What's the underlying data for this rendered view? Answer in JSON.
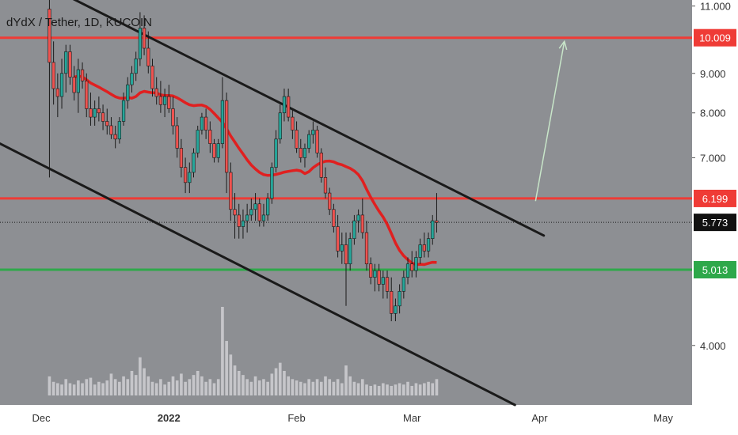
{
  "chart_data": {
    "type": "candlestick",
    "title": "dYdX / Tether, 1D, KUCOIN",
    "colors": {
      "background": "#8d8f93",
      "axis_panel": "#ffffff",
      "up": "#26a69a",
      "down": "#ef5350",
      "ma_line": "#e02020",
      "trendline": "#1a1a1a",
      "resistance": "#ef3b36",
      "support": "#2ea84a",
      "projection": "#c8e6c9",
      "volume": "#d0d0d3"
    },
    "y_axis": {
      "scale": "log",
      "range": [
        3.35,
        11.2
      ],
      "ticks": [
        {
          "value": 11.0,
          "label": "11.000"
        },
        {
          "value": 9.0,
          "label": "9.000"
        },
        {
          "value": 8.0,
          "label": "8.000"
        },
        {
          "value": 7.0,
          "label": "7.000"
        },
        {
          "value": 4.0,
          "label": "4.000"
        }
      ]
    },
    "x_axis": {
      "range": [
        "2021-11-21",
        "2022-05-08"
      ],
      "ticks": [
        {
          "date": "2021-12-01",
          "label": "Dec"
        },
        {
          "date": "2022-01-01",
          "label": "2022"
        },
        {
          "date": "2022-02-01",
          "label": "Feb"
        },
        {
          "date": "2022-03-01",
          "label": "Mar"
        },
        {
          "date": "2022-04-01",
          "label": "Apr"
        },
        {
          "date": "2022-05-01",
          "label": "May"
        }
      ]
    },
    "horizontal_levels": [
      {
        "name": "resistance-upper",
        "value": 10.009,
        "label": "10.009",
        "color": "#ef3b36"
      },
      {
        "name": "resistance-lower",
        "value": 6.199,
        "label": "6.199",
        "color": "#ef3b36"
      },
      {
        "name": "support",
        "value": 5.013,
        "label": "5.013",
        "color": "#2ea84a"
      }
    ],
    "last_price": {
      "value": 5.773,
      "label": "5.773"
    },
    "trendlines": [
      {
        "name": "upper-trendline",
        "points": [
          [
            "2021-12-05",
            11.5
          ],
          [
            "2022-04-02",
            5.55
          ]
        ]
      },
      {
        "name": "lower-trendline",
        "points": [
          [
            "2021-11-21",
            7.3
          ],
          [
            "2022-03-26",
            3.35
          ]
        ]
      }
    ],
    "projection_arrow": {
      "from": [
        "2022-03-31",
        6.15
      ],
      "to": [
        "2022-04-07",
        9.9
      ]
    },
    "ohlc": {
      "start_date": "2021-12-03",
      "rows": [
        [
          10.9,
          11.5,
          6.6,
          9.3
        ],
        [
          9.3,
          9.9,
          8.2,
          8.6
        ],
        [
          8.6,
          9.0,
          7.9,
          8.4
        ],
        [
          8.4,
          9.4,
          8.1,
          9.0
        ],
        [
          9.0,
          9.8,
          8.5,
          9.6
        ],
        [
          9.6,
          9.8,
          8.7,
          8.9
        ],
        [
          8.9,
          9.2,
          8.3,
          8.5
        ],
        [
          8.5,
          9.4,
          8.0,
          9.1
        ],
        [
          9.1,
          9.3,
          8.6,
          8.8
        ],
        [
          8.8,
          9.0,
          7.9,
          8.1
        ],
        [
          8.1,
          8.5,
          7.7,
          7.9
        ],
        [
          7.9,
          8.3,
          7.7,
          8.1
        ],
        [
          8.1,
          8.4,
          7.8,
          8.0
        ],
        [
          8.0,
          8.2,
          7.6,
          7.8
        ],
        [
          7.8,
          8.1,
          7.5,
          7.7
        ],
        [
          7.7,
          7.9,
          7.4,
          7.5
        ],
        [
          7.5,
          7.7,
          7.2,
          7.4
        ],
        [
          7.4,
          7.9,
          7.3,
          7.8
        ],
        [
          7.8,
          8.5,
          7.7,
          8.3
        ],
        [
          8.3,
          8.9,
          8.1,
          8.7
        ],
        [
          8.7,
          9.2,
          8.5,
          9.0
        ],
        [
          9.0,
          9.6,
          8.8,
          9.4
        ],
        [
          9.4,
          10.8,
          9.2,
          10.3
        ],
        [
          10.3,
          10.7,
          9.5,
          9.7
        ],
        [
          9.7,
          10.2,
          9.0,
          9.2
        ],
        [
          9.2,
          9.4,
          8.4,
          8.6
        ],
        [
          8.6,
          8.9,
          8.2,
          8.4
        ],
        [
          8.4,
          8.8,
          8.0,
          8.2
        ],
        [
          8.2,
          8.6,
          7.9,
          8.4
        ],
        [
          8.4,
          8.7,
          8.0,
          8.1
        ],
        [
          8.1,
          8.4,
          7.5,
          7.7
        ],
        [
          7.7,
          7.9,
          7.0,
          7.2
        ],
        [
          7.2,
          7.4,
          6.6,
          6.8
        ],
        [
          6.8,
          7.0,
          6.3,
          6.5
        ],
        [
          6.5,
          6.9,
          6.3,
          6.7
        ],
        [
          6.7,
          7.2,
          6.6,
          7.1
        ],
        [
          7.1,
          7.7,
          7.0,
          7.6
        ],
        [
          7.6,
          8.0,
          7.5,
          7.9
        ],
        [
          7.9,
          8.1,
          7.4,
          7.6
        ],
        [
          7.6,
          7.8,
          7.1,
          7.3
        ],
        [
          7.3,
          7.4,
          6.9,
          7.0
        ],
        [
          7.0,
          7.4,
          6.9,
          7.3
        ],
        [
          7.3,
          8.9,
          7.2,
          8.3
        ],
        [
          8.3,
          8.5,
          6.3,
          6.7
        ],
        [
          6.7,
          6.9,
          5.8,
          6.0
        ],
        [
          6.0,
          6.3,
          5.5,
          5.9
        ],
        [
          5.9,
          6.1,
          5.5,
          5.7
        ],
        [
          5.7,
          6.0,
          5.5,
          5.8
        ],
        [
          5.8,
          6.1,
          5.6,
          5.9
        ],
        [
          5.9,
          6.2,
          5.8,
          6.0
        ],
        [
          6.0,
          6.3,
          5.8,
          6.1
        ],
        [
          6.1,
          6.2,
          5.7,
          5.8
        ],
        [
          5.8,
          6.1,
          5.7,
          5.9
        ],
        [
          5.9,
          6.3,
          5.8,
          6.2
        ],
        [
          6.2,
          6.9,
          6.1,
          6.8
        ],
        [
          6.8,
          7.6,
          6.7,
          7.4
        ],
        [
          7.4,
          8.2,
          7.3,
          8.0
        ],
        [
          8.0,
          8.6,
          7.8,
          8.4
        ],
        [
          8.4,
          8.6,
          7.8,
          7.9
        ],
        [
          7.9,
          8.1,
          7.4,
          7.6
        ],
        [
          7.6,
          7.8,
          7.1,
          7.2
        ],
        [
          7.2,
          7.4,
          6.9,
          7.0
        ],
        [
          7.0,
          7.3,
          6.8,
          7.2
        ],
        [
          7.2,
          7.6,
          7.1,
          7.5
        ],
        [
          7.5,
          7.8,
          7.3,
          7.6
        ],
        [
          7.6,
          7.7,
          7.0,
          7.1
        ],
        [
          7.1,
          7.2,
          6.5,
          6.6
        ],
        [
          6.6,
          6.8,
          6.2,
          6.3
        ],
        [
          6.3,
          6.4,
          5.9,
          6.0
        ],
        [
          6.0,
          6.1,
          5.6,
          5.7
        ],
        [
          5.7,
          5.9,
          5.2,
          5.3
        ],
        [
          5.3,
          5.6,
          5.1,
          5.4
        ],
        [
          5.4,
          5.6,
          4.5,
          5.1
        ],
        [
          5.1,
          5.6,
          5.0,
          5.5
        ],
        [
          5.5,
          5.9,
          5.4,
          5.8
        ],
        [
          5.8,
          6.0,
          5.6,
          5.9
        ],
        [
          5.9,
          6.2,
          5.5,
          5.6
        ],
        [
          5.6,
          5.8,
          5.0,
          5.1
        ],
        [
          5.1,
          5.2,
          4.8,
          4.9
        ],
        [
          4.9,
          5.1,
          4.7,
          5.0
        ],
        [
          5.0,
          5.1,
          4.7,
          4.8
        ],
        [
          4.8,
          5.0,
          4.6,
          4.9
        ],
        [
          4.9,
          5.0,
          4.6,
          4.7
        ],
        [
          4.7,
          4.9,
          4.3,
          4.4
        ],
        [
          4.4,
          4.6,
          4.3,
          4.5
        ],
        [
          4.5,
          4.8,
          4.4,
          4.7
        ],
        [
          4.7,
          5.0,
          4.6,
          4.9
        ],
        [
          4.9,
          5.2,
          4.8,
          5.1
        ],
        [
          5.1,
          5.3,
          4.9,
          5.0
        ],
        [
          5.0,
          5.3,
          4.9,
          5.2
        ],
        [
          5.2,
          5.5,
          5.1,
          5.4
        ],
        [
          5.4,
          5.6,
          5.2,
          5.3
        ],
        [
          5.3,
          5.6,
          5.2,
          5.5
        ],
        [
          5.5,
          5.9,
          5.4,
          5.8
        ],
        [
          5.8,
          6.3,
          5.6,
          5.77
        ]
      ]
    },
    "volume": [
      14,
      10,
      9,
      8,
      12,
      9,
      8,
      11,
      9,
      12,
      13,
      8,
      10,
      9,
      11,
      16,
      12,
      10,
      14,
      12,
      18,
      15,
      28,
      20,
      14,
      10,
      9,
      12,
      8,
      10,
      14,
      11,
      16,
      10,
      12,
      15,
      18,
      14,
      10,
      12,
      9,
      12,
      65,
      40,
      30,
      22,
      18,
      15,
      12,
      10,
      14,
      11,
      12,
      10,
      16,
      20,
      24,
      18,
      14,
      12,
      11,
      10,
      9,
      12,
      10,
      12,
      10,
      14,
      12,
      10,
      12,
      9,
      22,
      14,
      10,
      9,
      12,
      8,
      7,
      8,
      7,
      9,
      8,
      7,
      8,
      9,
      8,
      10,
      7,
      9,
      8,
      9,
      10,
      9,
      12
    ]
  }
}
